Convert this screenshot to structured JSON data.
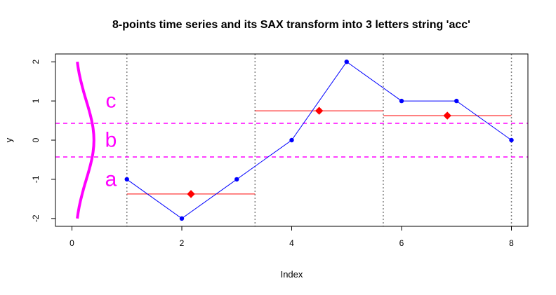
{
  "chart_data": {
    "type": "line",
    "title": "8-points time series and its SAX transform into 3 letters string 'acc'",
    "xlabel": "Index",
    "ylabel": "y",
    "xlim": [
      -0.3,
      8.3
    ],
    "ylim": [
      -2.2,
      2.2
    ],
    "x_ticks": [
      0,
      2,
      4,
      6,
      8
    ],
    "y_ticks": [
      -2,
      -1,
      0,
      1,
      2
    ],
    "grid": false,
    "series": [
      {
        "x": [
          1,
          2,
          3,
          4,
          5,
          6,
          7,
          8
        ],
        "values": [
          -1,
          -2,
          -1,
          0,
          2,
          1,
          1,
          0
        ],
        "color": "#0000ff"
      }
    ],
    "paa_segments": [
      {
        "x_start": 1.0,
        "x_end": 3.333,
        "value": -1.375,
        "marker_x": 2.167
      },
      {
        "x_start": 3.333,
        "x_end": 5.667,
        "value": 0.75,
        "marker_x": 4.5
      },
      {
        "x_start": 5.667,
        "x_end": 8.0,
        "value": 0.625,
        "marker_x": 6.833
      }
    ],
    "segment_boundaries": [
      1.0,
      3.333,
      5.667,
      8.0
    ],
    "breakpoints": [
      -0.43,
      0.43
    ],
    "alphabet_letters": [
      {
        "letter": "c",
        "y": 1.0
      },
      {
        "letter": "b",
        "y": 0.0
      },
      {
        "letter": "a",
        "y": -1.0
      }
    ],
    "colors": {
      "series": "#0000ff",
      "paa": "#ff0000",
      "breakpoints": "#ff00ff",
      "boundaries": "#808080",
      "gaussian": "#ff00ff"
    }
  }
}
